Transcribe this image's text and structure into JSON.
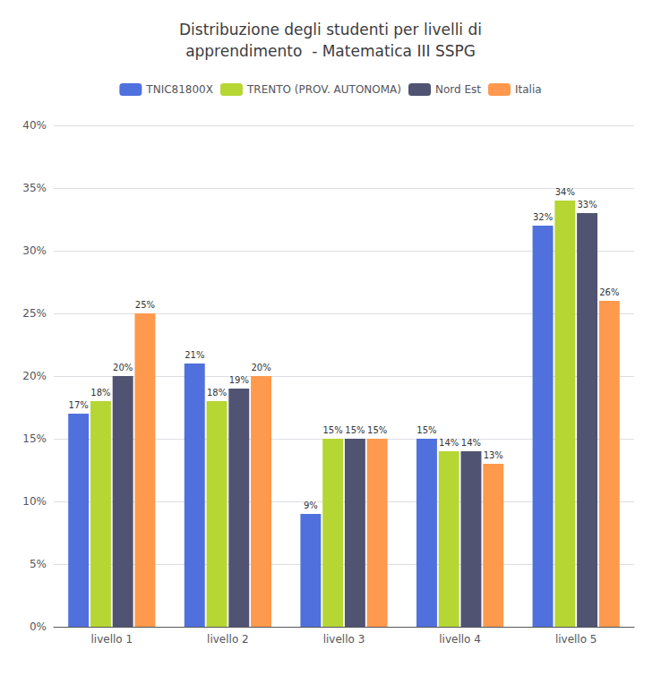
{
  "chart_data": {
    "type": "bar",
    "title": "Distribuzione degli studenti per livelli di\napprendimento  - Matematica III SSPG",
    "categories": [
      "livello 1",
      "livello 2",
      "livello 3",
      "livello 4",
      "livello 5"
    ],
    "series": [
      {
        "name": "TNIC81800X",
        "values": [
          17,
          21,
          9,
          15,
          32
        ],
        "value_labels": [
          "17%",
          "21%",
          "9%",
          "15%",
          "32%"
        ]
      },
      {
        "name": "TRENTO (PROV. AUTONOMA)",
        "values": [
          18,
          18,
          15,
          14,
          34
        ],
        "value_labels": [
          "18%",
          "18%",
          "15%",
          "14%",
          "34%"
        ]
      },
      {
        "name": "Nord Est",
        "values": [
          20,
          19,
          15,
          14,
          33
        ],
        "value_labels": [
          "20%",
          "19%",
          "15%",
          "14%",
          "33%"
        ]
      },
      {
        "name": "Italia",
        "values": [
          25,
          20,
          15,
          13,
          26
        ],
        "value_labels": [
          "25%",
          "20%",
          "15%",
          "13%",
          "26%"
        ]
      }
    ],
    "ylim": [
      0,
      40
    ],
    "yticks": [
      {
        "value": 0,
        "label": "0%"
      },
      {
        "value": 5,
        "label": "5%"
      },
      {
        "value": 10,
        "label": "10%"
      },
      {
        "value": 15,
        "label": "15%"
      },
      {
        "value": 20,
        "label": "20%"
      },
      {
        "value": 25,
        "label": "25%"
      },
      {
        "value": 30,
        "label": "30%"
      },
      {
        "value": 35,
        "label": "35%"
      },
      {
        "value": 40,
        "label": "40%"
      }
    ],
    "grid": true,
    "legend": "top",
    "data_labels": true
  }
}
